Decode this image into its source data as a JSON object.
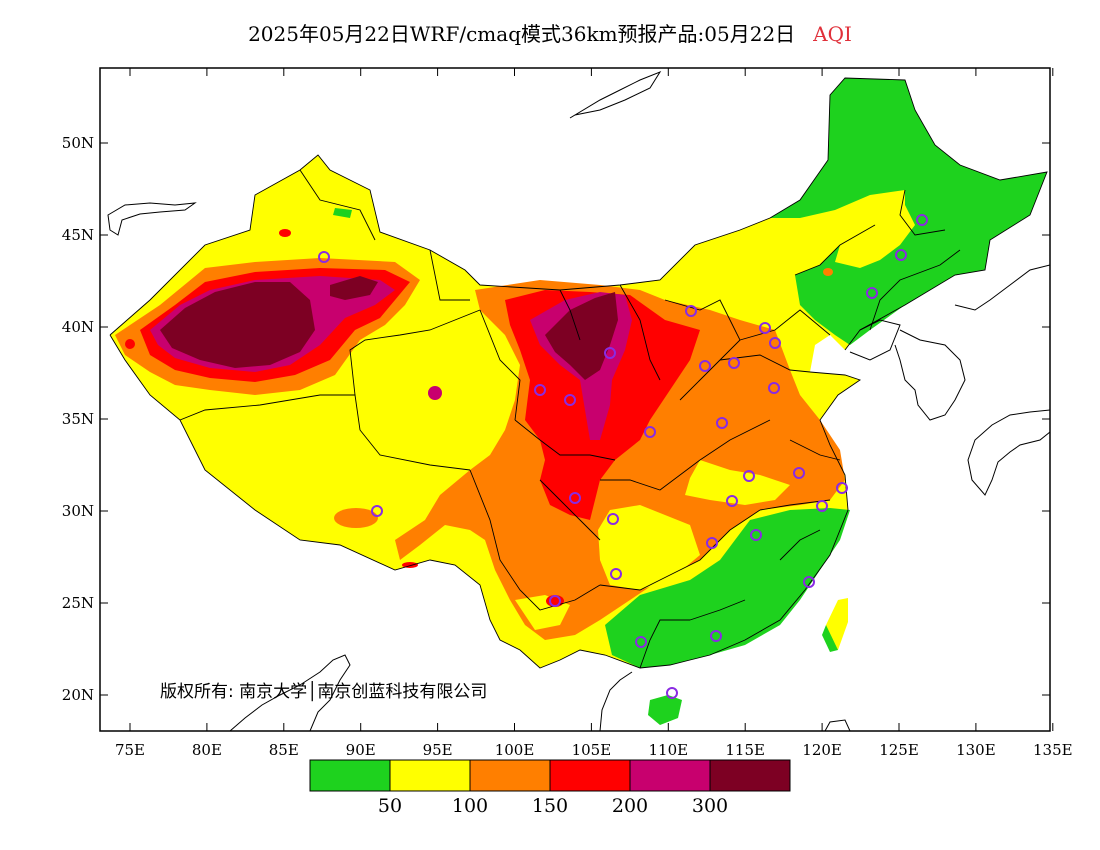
{
  "title": {
    "main": "2025年05月22日WRF/cmaq模式36km预报产品:05月22日",
    "variable": "AQI"
  },
  "axes": {
    "x_ticks": [
      "75E",
      "80E",
      "85E",
      "90E",
      "95E",
      "100E",
      "105E",
      "110E",
      "115E",
      "120E",
      "125E",
      "130E",
      "135E"
    ],
    "y_ticks": [
      "50N",
      "45N",
      "40N",
      "35N",
      "30N",
      "25N",
      "20N"
    ]
  },
  "legend": {
    "colors": [
      "#1ed21e",
      "#ffff00",
      "#ff7f00",
      "#ff0000",
      "#c8006e",
      "#7d0023"
    ],
    "labels": [
      "50",
      "100",
      "150",
      "200",
      "300"
    ]
  },
  "copyright": "版权所有: 南京大学│南京创蓝科技有限公司",
  "colors": {
    "good": "#1ed21e",
    "moderate": "#ffff00",
    "sensitive": "#ff7f00",
    "unhealthy": "#ff0000",
    "very_unhealthy": "#c8006e",
    "hazardous": "#7d0023",
    "station": "#8a2be2"
  }
}
